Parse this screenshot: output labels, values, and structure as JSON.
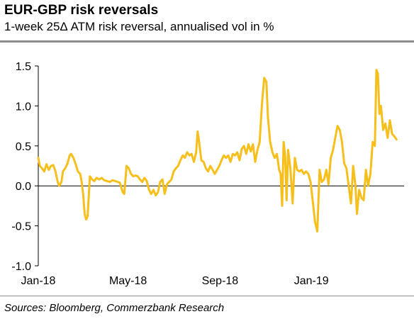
{
  "title": "EUR-GBP risk reversals",
  "subtitle": "1-week 25Δ ATM risk reversal, annualised vol in %",
  "source": "Sources: Bloomberg, Commerzbank Research",
  "colors": {
    "line": "#f7bf1b",
    "axis": "#000000",
    "rule": "#8c8c8c"
  },
  "chart_data": {
    "type": "line",
    "title": "EUR-GBP risk reversals",
    "subtitle": "1-week 25Δ ATM risk reversal, annualised vol in %",
    "ylim": [
      -1.0,
      1.5
    ],
    "yticks": [
      "1.5",
      "1.0",
      "0.5",
      "0.0",
      "-0.5",
      "-1.0"
    ],
    "ytick_values": [
      1.5,
      1.0,
      0.5,
      0.0,
      -0.5,
      -1.0
    ],
    "xticks": [
      "Jan-18",
      "May-18",
      "Sep-18",
      "Jan-19"
    ],
    "xtick_dates": [
      "2018-01-01",
      "2018-05-01",
      "2018-09-01",
      "2019-01-01"
    ],
    "xlim": [
      "2018-01-01",
      "2019-05-05"
    ],
    "grid": false,
    "series": [
      {
        "values": [
          [
            "2018-01-01",
            0.35
          ],
          [
            "2018-01-03",
            0.25
          ],
          [
            "2018-01-06",
            0.22
          ],
          [
            "2018-01-09",
            0.18
          ],
          [
            "2018-01-12",
            0.27
          ],
          [
            "2018-01-15",
            0.2
          ],
          [
            "2018-01-18",
            0.25
          ],
          [
            "2018-01-21",
            0.26
          ],
          [
            "2018-01-24",
            0.18
          ],
          [
            "2018-01-27",
            0.05
          ],
          [
            "2018-01-29",
            0.0
          ],
          [
            "2018-02-01",
            0.05
          ],
          [
            "2018-02-03",
            0.18
          ],
          [
            "2018-02-06",
            0.22
          ],
          [
            "2018-02-09",
            0.28
          ],
          [
            "2018-02-12",
            0.38
          ],
          [
            "2018-02-14",
            0.4
          ],
          [
            "2018-02-17",
            0.35
          ],
          [
            "2018-02-20",
            0.27
          ],
          [
            "2018-02-23",
            0.18
          ],
          [
            "2018-02-26",
            0.15
          ],
          [
            "2018-02-28",
            0.05
          ],
          [
            "2018-03-02",
            -0.1
          ],
          [
            "2018-03-04",
            -0.35
          ],
          [
            "2018-03-06",
            -0.42
          ],
          [
            "2018-03-08",
            -0.38
          ],
          [
            "2018-03-11",
            0.12
          ],
          [
            "2018-03-14",
            0.08
          ],
          [
            "2018-03-17",
            0.06
          ],
          [
            "2018-03-20",
            0.1
          ],
          [
            "2018-03-23",
            0.08
          ],
          [
            "2018-03-27",
            0.1
          ],
          [
            "2018-03-30",
            0.07
          ],
          [
            "2018-04-03",
            0.06
          ],
          [
            "2018-04-07",
            0.05
          ],
          [
            "2018-04-10",
            0.07
          ],
          [
            "2018-04-14",
            0.06
          ],
          [
            "2018-04-17",
            0.05
          ],
          [
            "2018-04-20",
            0.04
          ],
          [
            "2018-04-24",
            -0.08
          ],
          [
            "2018-04-26",
            -0.1
          ],
          [
            "2018-04-29",
            0.25
          ],
          [
            "2018-05-02",
            0.22
          ],
          [
            "2018-05-05",
            0.15
          ],
          [
            "2018-05-08",
            0.12
          ],
          [
            "2018-05-11",
            0.13
          ],
          [
            "2018-05-14",
            0.12
          ],
          [
            "2018-05-17",
            0.08
          ],
          [
            "2018-05-20",
            0.05
          ],
          [
            "2018-05-23",
            0.1
          ],
          [
            "2018-05-26",
            0.06
          ],
          [
            "2018-05-29",
            -0.05
          ],
          [
            "2018-06-01",
            -0.1
          ],
          [
            "2018-06-04",
            -0.05
          ],
          [
            "2018-06-07",
            -0.12
          ],
          [
            "2018-06-10",
            -0.08
          ],
          [
            "2018-06-13",
            0.05
          ],
          [
            "2018-06-16",
            0.08
          ],
          [
            "2018-06-19",
            -0.1
          ],
          [
            "2018-06-22",
            0.02
          ],
          [
            "2018-06-25",
            0.05
          ],
          [
            "2018-06-28",
            0.08
          ],
          [
            "2018-07-01",
            0.18
          ],
          [
            "2018-07-04",
            0.22
          ],
          [
            "2018-07-07",
            0.25
          ],
          [
            "2018-07-10",
            0.32
          ],
          [
            "2018-07-13",
            0.38
          ],
          [
            "2018-07-16",
            0.35
          ],
          [
            "2018-07-19",
            0.42
          ],
          [
            "2018-07-22",
            0.38
          ],
          [
            "2018-07-25",
            0.4
          ],
          [
            "2018-07-28",
            0.3
          ],
          [
            "2018-07-31",
            0.42
          ],
          [
            "2018-08-02",
            0.68
          ],
          [
            "2018-08-04",
            0.55
          ],
          [
            "2018-08-07",
            0.32
          ],
          [
            "2018-08-10",
            0.3
          ],
          [
            "2018-08-13",
            0.22
          ],
          [
            "2018-08-16",
            0.18
          ],
          [
            "2018-08-19",
            0.25
          ],
          [
            "2018-08-22",
            0.2
          ],
          [
            "2018-08-25",
            0.15
          ],
          [
            "2018-08-28",
            0.2
          ],
          [
            "2018-08-31",
            0.25
          ],
          [
            "2018-09-03",
            0.32
          ],
          [
            "2018-09-06",
            0.38
          ],
          [
            "2018-09-09",
            0.35
          ],
          [
            "2018-09-12",
            0.38
          ],
          [
            "2018-09-15",
            0.3
          ],
          [
            "2018-09-18",
            0.4
          ],
          [
            "2018-09-21",
            0.38
          ],
          [
            "2018-09-24",
            0.42
          ],
          [
            "2018-09-27",
            0.32
          ],
          [
            "2018-09-30",
            0.46
          ],
          [
            "2018-10-03",
            0.5
          ],
          [
            "2018-10-06",
            0.4
          ],
          [
            "2018-10-09",
            0.52
          ],
          [
            "2018-10-12",
            0.43
          ],
          [
            "2018-10-15",
            0.52
          ],
          [
            "2018-10-18",
            0.3
          ],
          [
            "2018-10-21",
            0.45
          ],
          [
            "2018-10-24",
            0.55
          ],
          [
            "2018-10-27",
            1.02
          ],
          [
            "2018-10-30",
            1.35
          ],
          [
            "2018-11-02",
            1.3
          ],
          [
            "2018-11-04",
            0.85
          ],
          [
            "2018-11-07",
            0.55
          ],
          [
            "2018-11-10",
            0.42
          ],
          [
            "2018-11-13",
            0.35
          ],
          [
            "2018-11-16",
            0.4
          ],
          [
            "2018-11-19",
            0.2
          ],
          [
            "2018-11-21",
            0.15
          ],
          [
            "2018-11-23",
            -0.25
          ],
          [
            "2018-11-25",
            0.55
          ],
          [
            "2018-11-27",
            0.38
          ],
          [
            "2018-11-29",
            -0.18
          ],
          [
            "2018-12-01",
            0.45
          ],
          [
            "2018-12-04",
            0.22
          ],
          [
            "2018-12-07",
            -0.22
          ],
          [
            "2018-12-10",
            0.35
          ],
          [
            "2018-12-13",
            0.2
          ],
          [
            "2018-12-16",
            0.18
          ],
          [
            "2018-12-19",
            0.2
          ],
          [
            "2018-12-22",
            0.15
          ],
          [
            "2018-12-25",
            0.18
          ],
          [
            "2018-12-28",
            0.15
          ],
          [
            "2018-12-31",
            0.05
          ],
          [
            "2019-01-03",
            -0.2
          ],
          [
            "2019-01-06",
            -0.45
          ],
          [
            "2019-01-09",
            -0.57
          ],
          [
            "2019-01-12",
            0.2
          ],
          [
            "2019-01-15",
            0.05
          ],
          [
            "2019-01-18",
            0.08
          ],
          [
            "2019-01-21",
            0.2
          ],
          [
            "2019-01-24",
            0.02
          ],
          [
            "2019-01-27",
            0.35
          ],
          [
            "2019-01-30",
            0.45
          ],
          [
            "2019-02-02",
            0.6
          ],
          [
            "2019-02-05",
            0.75
          ],
          [
            "2019-02-08",
            0.7
          ],
          [
            "2019-02-11",
            0.55
          ],
          [
            "2019-02-14",
            0.28
          ],
          [
            "2019-02-17",
            0.22
          ],
          [
            "2019-02-20",
            0.0
          ],
          [
            "2019-02-23",
            -0.22
          ],
          [
            "2019-02-26",
            0.25
          ],
          [
            "2019-03-01",
            0.0
          ],
          [
            "2019-03-03",
            -0.35
          ],
          [
            "2019-03-06",
            -0.05
          ],
          [
            "2019-03-09",
            -0.15
          ],
          [
            "2019-03-12",
            -0.18
          ],
          [
            "2019-03-15",
            0.2
          ],
          [
            "2019-03-18",
            0.0
          ],
          [
            "2019-03-21",
            0.15
          ],
          [
            "2019-03-24",
            0.55
          ],
          [
            "2019-03-27",
            0.5
          ],
          [
            "2019-03-29",
            1.45
          ],
          [
            "2019-03-31",
            1.4
          ],
          [
            "2019-04-02",
            0.9
          ],
          [
            "2019-04-04",
            1.0
          ],
          [
            "2019-04-07",
            0.7
          ],
          [
            "2019-04-10",
            0.78
          ],
          [
            "2019-04-13",
            0.6
          ],
          [
            "2019-04-16",
            0.82
          ],
          [
            "2019-04-19",
            0.65
          ],
          [
            "2019-04-22",
            0.62
          ],
          [
            "2019-04-25",
            0.58
          ]
        ]
      }
    ]
  }
}
